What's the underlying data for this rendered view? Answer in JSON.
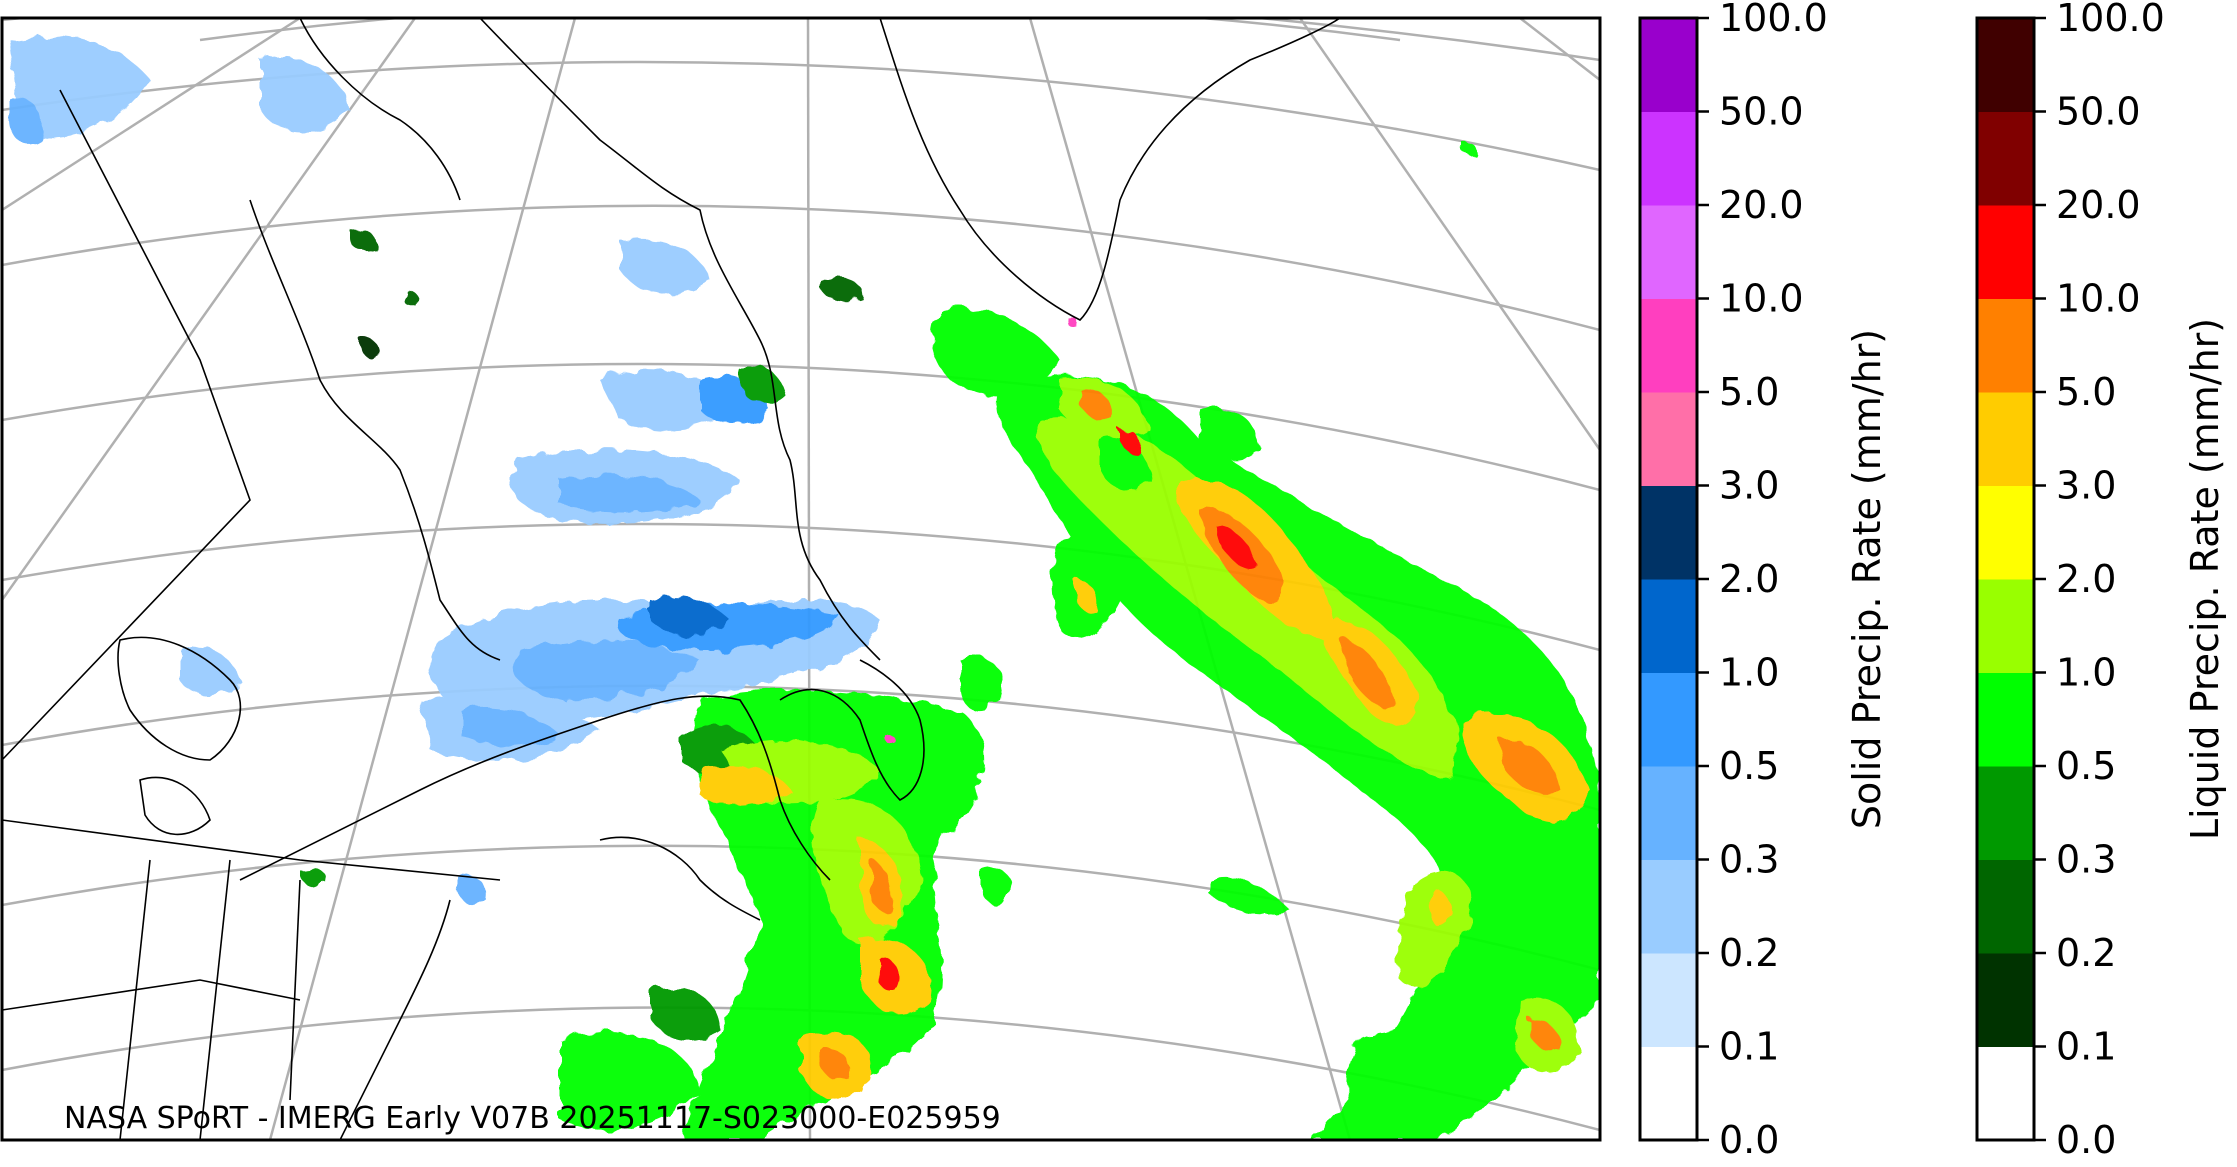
{
  "map": {
    "title_overlay": "NASA SPoRT - IMERG Early V07B 20251117-S023000-E025959",
    "colors": {
      "graticule": "#b0b0b0",
      "coastline": "#000000",
      "frame": "#000000"
    }
  },
  "colorbars": [
    {
      "id": "solid",
      "label": "Solid Precip. Rate (mm/hr)",
      "ticks": [
        "0.0",
        "0.1",
        "0.2",
        "0.3",
        "0.5",
        "1.0",
        "2.0",
        "3.0",
        "5.0",
        "10.0",
        "20.0",
        "50.0",
        "100.0"
      ],
      "colors": [
        "#ffffff",
        "#cce6ff",
        "#99ccff",
        "#66b2ff",
        "#3399ff",
        "#0066cc",
        "#003366",
        "#ff6fa8",
        "#ff3fbf",
        "#e066ff",
        "#cc33ff",
        "#9900cc"
      ]
    },
    {
      "id": "liquid",
      "label": "Liquid Precip. Rate (mm/hr)",
      "ticks": [
        "0.0",
        "0.1",
        "0.2",
        "0.3",
        "0.5",
        "1.0",
        "2.0",
        "3.0",
        "5.0",
        "10.0",
        "20.0",
        "50.0",
        "100.0"
      ],
      "colors": [
        "#ffffff",
        "#003300",
        "#006600",
        "#009900",
        "#00ff00",
        "#99ff00",
        "#ffff00",
        "#ffcc00",
        "#ff8000",
        "#ff0000",
        "#800000",
        "#400000"
      ]
    }
  ]
}
